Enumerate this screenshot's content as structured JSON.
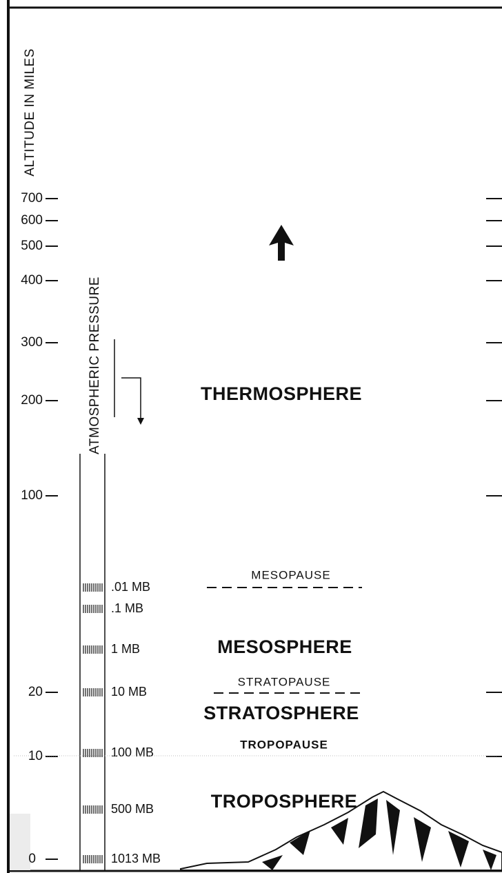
{
  "axis_label": "ALTITUDE IN MILES",
  "altitude_ticks": [
    "700",
    "600",
    "500",
    "400",
    "300",
    "200",
    "100",
    "20",
    "10",
    "0"
  ],
  "pressure_label": "ATMOSPHERIC PRESSURE",
  "pressure_levels": [
    ".01 MB",
    ".1 MB",
    "1 MB",
    "10 MB",
    "100 MB",
    "500 MB",
    "1013 MB"
  ],
  "layers": [
    "THERMOSPHERE",
    "MESOSPHERE",
    "STRATOSPHERE",
    "TROPOSPHERE"
  ],
  "boundaries": [
    "MESOPAUSE",
    "STRATOPAUSE",
    "TROPOPAUSE"
  ]
}
